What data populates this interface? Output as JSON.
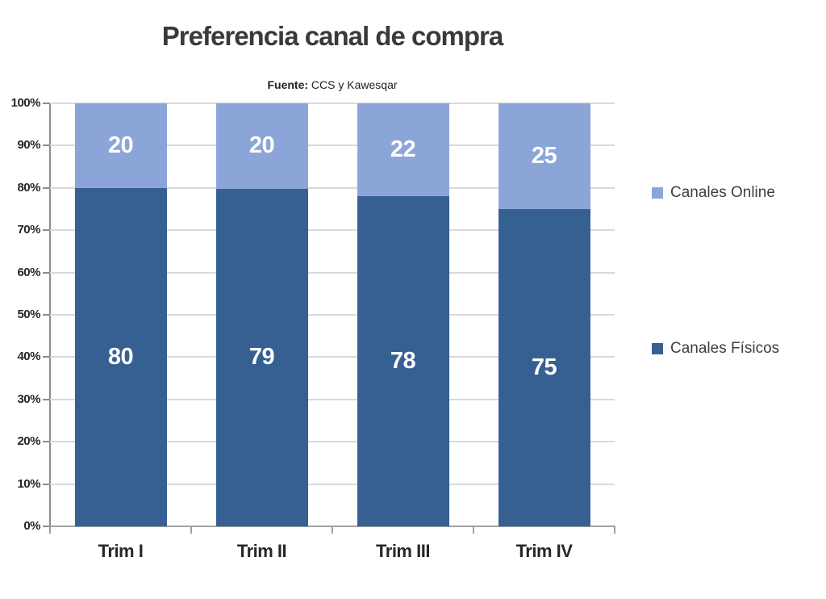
{
  "chart_data": {
    "type": "bar",
    "variant": "stacked-100",
    "title": "Preferencia canal de compra",
    "source": {
      "label": "Fuente:",
      "value": "CCS y Kawesqar"
    },
    "categories": [
      "Trim I",
      "Trim II",
      "Trim III",
      "Trim IV"
    ],
    "series": [
      {
        "name": "Canales Físicos",
        "color": "#366091",
        "values": [
          80,
          79,
          78,
          75
        ]
      },
      {
        "name": "Canales Online",
        "color": "#8CA5D8",
        "values": [
          20,
          20,
          22,
          25
        ]
      }
    ],
    "y_axis": {
      "ticks": [
        "0%",
        "10%",
        "20%",
        "30%",
        "40%",
        "50%",
        "60%",
        "70%",
        "80%",
        "90%",
        "100%"
      ],
      "range": [
        0,
        100
      ]
    },
    "legend": {
      "position": "right",
      "items": [
        {
          "label": "Canales Online",
          "color": "#8CA5D8"
        },
        {
          "label": "Canales Físicos",
          "color": "#366091"
        }
      ]
    },
    "grid": true,
    "colors": {
      "gridline": "#D9D9D9",
      "axis": "#8C8C8C",
      "title_text": "#3A3A3A",
      "axis_text": "#262626",
      "bar_label_text": "#FFFFFF",
      "background": "#FFFFFF"
    }
  }
}
